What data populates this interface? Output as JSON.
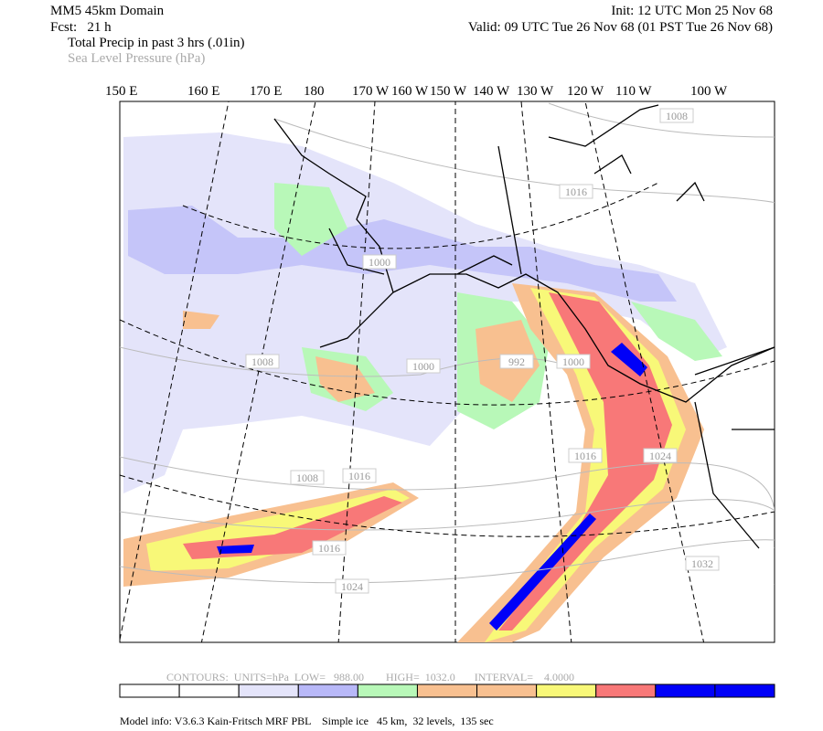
{
  "header": {
    "domain": "MM5 45km Domain",
    "forecast": "Fcst:   21 h",
    "init": "Init: 12 UTC Mon 25 Nov 68",
    "valid": "Valid: 09 UTC Tue 26 Nov 68 (01 PST Tue 26 Nov 68)",
    "field1": "Total Precip in past 3 hrs (.01in)",
    "field2": "Sea Level Pressure (hPa)"
  },
  "longitudes": [
    "150 E",
    "160 E",
    "170 E",
    "180",
    "170 W",
    "160 W",
    "150 W",
    "140 W",
    "130 W",
    "120 W",
    "110 W",
    "100 W"
  ],
  "isobar_labels": [
    "1008",
    "1016",
    "1000",
    "1008",
    "1000",
    "992",
    "1000",
    "1016",
    "1024",
    "1008",
    "1016",
    "1016",
    "1024",
    "1032"
  ],
  "contour_info": "CONTOURS:  UNITS=hPa  LOW=   988.00        HIGH=  1032.0       INTERVAL=    4.0000",
  "colorbar": [
    "#ffffff",
    "#ffffff",
    "#e4e4fa",
    "#b8b8f8",
    "#b8f8b8",
    "#f8c090",
    "#f8c090",
    "#f8f878",
    "#f87878",
    "#0000f8",
    "#0000f8"
  ],
  "model_info": "Model info: V3.6.3 Kain-Fritsch MRF PBL    Simple ice   45 km,  32 levels,  135 sec"
}
